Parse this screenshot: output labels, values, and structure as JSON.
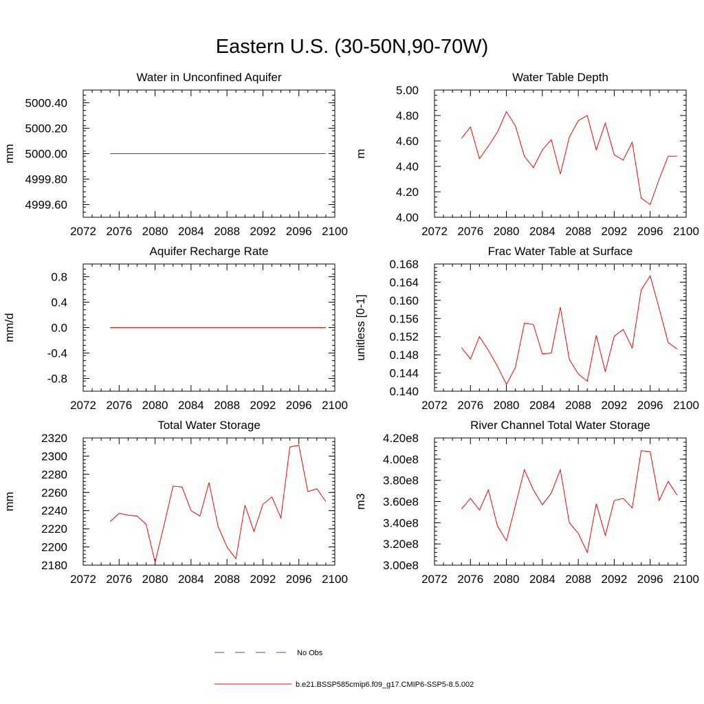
{
  "title": "Eastern U.S. (30-50N,90-70W)",
  "colors": {
    "model": "#ff0000",
    "obs": "#4a4aa8",
    "axis": "#000000"
  },
  "legend": {
    "obs_label": "No Obs",
    "model_label": "b.e21.BSSP585cmip6.f09_g17.CMIP6-SSP5-8.5.002"
  },
  "chart_data": [
    {
      "type": "line",
      "title": "Water in Unconfined Aquifer",
      "xlabel": "",
      "ylabel": "mm",
      "xlim": [
        2072,
        2100
      ],
      "ylim": [
        4999.5,
        5000.5
      ],
      "xticks": [
        2072,
        2076,
        2080,
        2084,
        2088,
        2092,
        2096,
        2100
      ],
      "xtick_labels": [
        "2072",
        "2076",
        "2080",
        "2084",
        "2088",
        "2092",
        "2096",
        "2100"
      ],
      "yticks": [
        4999.6,
        4999.8,
        5000.0,
        5000.2,
        5000.4
      ],
      "ytick_labels": [
        "4999.60",
        "4999.80",
        "5000.00",
        "5000.20",
        "5000.40"
      ],
      "grid": false,
      "series": [
        {
          "x": [
            2075,
            2076,
            2077,
            2078,
            2079,
            2080,
            2081,
            2082,
            2083,
            2084,
            2085,
            2086,
            2087,
            2088,
            2089,
            2090,
            2091,
            2092,
            2093,
            2094,
            2095,
            2096,
            2097,
            2098,
            2099
          ],
          "values": [
            5000,
            5000,
            5000,
            5000,
            5000,
            5000,
            5000,
            5000,
            5000,
            5000,
            5000,
            5000,
            5000,
            5000,
            5000,
            5000,
            5000,
            5000,
            5000,
            5000,
            5000,
            5000,
            5000,
            5000,
            5000
          ]
        }
      ]
    },
    {
      "type": "line",
      "title": "Water Table Depth",
      "xlabel": "",
      "ylabel": "m",
      "xlim": [
        2072,
        2100
      ],
      "ylim": [
        4.0,
        5.0
      ],
      "xticks": [
        2072,
        2076,
        2080,
        2084,
        2088,
        2092,
        2096,
        2100
      ],
      "xtick_labels": [
        "2072",
        "2076",
        "2080",
        "2084",
        "2088",
        "2092",
        "2096",
        "2100"
      ],
      "yticks": [
        4.0,
        4.2,
        4.4,
        4.6,
        4.8,
        5.0
      ],
      "ytick_labels": [
        "4.00",
        "4.20",
        "4.40",
        "4.60",
        "4.80",
        "5.00"
      ],
      "grid": false,
      "series": [
        {
          "x": [
            2075,
            2076,
            2077,
            2078,
            2079,
            2080,
            2081,
            2082,
            2083,
            2084,
            2085,
            2086,
            2087,
            2088,
            2089,
            2090,
            2091,
            2092,
            2093,
            2094,
            2095,
            2096,
            2097,
            2098,
            2099
          ],
          "values": [
            4.62,
            4.71,
            4.46,
            4.56,
            4.67,
            4.83,
            4.72,
            4.48,
            4.39,
            4.53,
            4.61,
            4.34,
            4.63,
            4.76,
            4.8,
            4.53,
            4.74,
            4.49,
            4.45,
            4.59,
            4.15,
            4.1,
            4.3,
            4.48,
            4.48
          ]
        }
      ]
    },
    {
      "type": "line",
      "title": "Aquifer Recharge Rate",
      "xlabel": "",
      "ylabel": "mm/d",
      "xlim": [
        2072,
        2100
      ],
      "ylim": [
        -1.0,
        1.0
      ],
      "xticks": [
        2072,
        2076,
        2080,
        2084,
        2088,
        2092,
        2096,
        2100
      ],
      "xtick_labels": [
        "2072",
        "2076",
        "2080",
        "2084",
        "2088",
        "2092",
        "2096",
        "2100"
      ],
      "yticks": [
        -0.8,
        -0.4,
        0.0,
        0.4,
        0.8
      ],
      "ytick_labels": [
        "-0.8",
        "-0.4",
        "0.0",
        "0.4",
        "0.8"
      ],
      "grid": false,
      "series": [
        {
          "x": [
            2075,
            2076,
            2077,
            2078,
            2079,
            2080,
            2081,
            2082,
            2083,
            2084,
            2085,
            2086,
            2087,
            2088,
            2089,
            2090,
            2091,
            2092,
            2093,
            2094,
            2095,
            2096,
            2097,
            2098,
            2099
          ],
          "values": [
            0,
            0,
            0,
            0,
            0,
            0,
            0,
            0,
            0,
            0,
            0,
            0,
            0,
            0,
            0,
            0,
            0,
            0,
            0,
            0,
            0,
            0,
            0,
            0,
            0
          ]
        }
      ]
    },
    {
      "type": "line",
      "title": "Frac Water Table at Surface",
      "xlabel": "",
      "ylabel": "unitless [0-1]",
      "xlim": [
        2072,
        2100
      ],
      "ylim": [
        0.14,
        0.168
      ],
      "xticks": [
        2072,
        2076,
        2080,
        2084,
        2088,
        2092,
        2096,
        2100
      ],
      "xtick_labels": [
        "2072",
        "2076",
        "2080",
        "2084",
        "2088",
        "2092",
        "2096",
        "2100"
      ],
      "yticks": [
        0.14,
        0.144,
        0.148,
        0.152,
        0.156,
        0.16,
        0.164,
        0.168
      ],
      "ytick_labels": [
        "0.140",
        "0.144",
        "0.148",
        "0.152",
        "0.156",
        "0.160",
        "0.164",
        "0.168"
      ],
      "grid": false,
      "series": [
        {
          "x": [
            2075,
            2076,
            2077,
            2078,
            2079,
            2080,
            2081,
            2082,
            2083,
            2084,
            2085,
            2086,
            2087,
            2088,
            2089,
            2090,
            2091,
            2092,
            2093,
            2094,
            2095,
            2096,
            2097,
            2098,
            2099
          ],
          "values": [
            0.1496,
            0.1471,
            0.152,
            0.149,
            0.1455,
            0.1415,
            0.1452,
            0.155,
            0.1547,
            0.1482,
            0.1484,
            0.1585,
            0.147,
            0.1438,
            0.1422,
            0.1523,
            0.1443,
            0.1521,
            0.1536,
            0.1495,
            0.1623,
            0.1654,
            0.1582,
            0.1507,
            0.1493
          ]
        }
      ]
    },
    {
      "type": "line",
      "title": "Total Water Storage",
      "xlabel": "",
      "ylabel": "mm",
      "xlim": [
        2072,
        2100
      ],
      "ylim": [
        2180,
        2320
      ],
      "xticks": [
        2072,
        2076,
        2080,
        2084,
        2088,
        2092,
        2096,
        2100
      ],
      "xtick_labels": [
        "2072",
        "2076",
        "2080",
        "2084",
        "2088",
        "2092",
        "2096",
        "2100"
      ],
      "yticks": [
        2180,
        2200,
        2220,
        2240,
        2260,
        2280,
        2300,
        2320
      ],
      "ytick_labels": [
        "2180",
        "2200",
        "2220",
        "2240",
        "2260",
        "2280",
        "2300",
        "2320"
      ],
      "grid": false,
      "series": [
        {
          "x": [
            2075,
            2076,
            2077,
            2078,
            2079,
            2080,
            2081,
            2082,
            2083,
            2084,
            2085,
            2086,
            2087,
            2088,
            2089,
            2090,
            2091,
            2092,
            2093,
            2094,
            2095,
            2096,
            2097,
            2098,
            2099
          ],
          "values": [
            2228,
            2237,
            2235,
            2234,
            2225,
            2183,
            2224,
            2267,
            2266,
            2240,
            2234,
            2271,
            2223,
            2200,
            2187,
            2246,
            2217,
            2247,
            2255,
            2232,
            2310,
            2312,
            2261,
            2264,
            2250
          ]
        }
      ]
    },
    {
      "type": "line",
      "title": "River Channel Total Water Storage",
      "xlabel": "",
      "ylabel": "m3",
      "xlim": [
        2072,
        2100
      ],
      "ylim": [
        300000000,
        420000000
      ],
      "xticks": [
        2072,
        2076,
        2080,
        2084,
        2088,
        2092,
        2096,
        2100
      ],
      "xtick_labels": [
        "2072",
        "2076",
        "2080",
        "2084",
        "2088",
        "2092",
        "2096",
        "2100"
      ],
      "yticks": [
        300000000,
        320000000,
        340000000,
        360000000,
        380000000,
        400000000,
        420000000
      ],
      "ytick_labels": [
        "3.00e8",
        "3.20e8",
        "3.40e8",
        "3.60e8",
        "3.80e8",
        "4.00e8",
        "4.20e8"
      ],
      "grid": false,
      "series": [
        {
          "x": [
            2075,
            2076,
            2077,
            2078,
            2079,
            2080,
            2081,
            2082,
            2083,
            2084,
            2085,
            2086,
            2087,
            2088,
            2089,
            2090,
            2091,
            2092,
            2093,
            2094,
            2095,
            2096,
            2097,
            2098,
            2099
          ],
          "values": [
            353000000,
            363000000,
            352000000,
            371000000,
            337000000,
            323000000,
            356000000,
            390000000,
            371000000,
            357000000,
            368000000,
            390000000,
            340000000,
            330000000,
            312000000,
            358000000,
            328000000,
            361000000,
            363000000,
            354000000,
            408000000,
            407000000,
            361000000,
            379000000,
            366000000
          ]
        }
      ]
    }
  ]
}
